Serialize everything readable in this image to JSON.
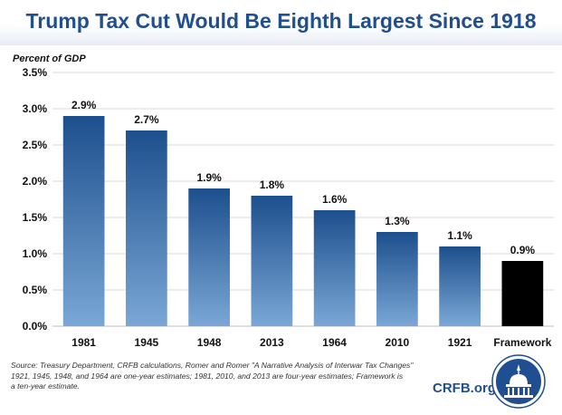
{
  "title": "Trump Tax Cut Would Be Eighth Largest Since 1918",
  "source_lines": [
    "Source: Treasury Department, CRFB calculations, Romer and Romer \"A Narrative Analysis of Interwar Tax Changes\"",
    "1921, 1945, 1948, and 1964 are one-year estimates; 1981, 2010, and 2013 are four-year estimates;  Framework is",
    "a ten-year estimate."
  ],
  "brand": "CRFB.org",
  "logo_icon": "capitol-dome-seal-icon",
  "chart_data": {
    "type": "bar",
    "title": "Trump Tax Cut Would Be Eighth Largest Since 1918",
    "ylabel": "Percent of GDP",
    "xlabel": "",
    "categories": [
      "1981",
      "1945",
      "1948",
      "2013",
      "1964",
      "2010",
      "1921",
      "Framework"
    ],
    "values": [
      2.9,
      2.7,
      1.9,
      1.8,
      1.6,
      1.3,
      1.1,
      0.9
    ],
    "data_labels": [
      "2.9%",
      "2.7%",
      "1.9%",
      "1.8%",
      "1.6%",
      "1.3%",
      "1.1%",
      "0.9%"
    ],
    "ylim": [
      0,
      3.5
    ],
    "yticks": [
      0,
      0.5,
      1.0,
      1.5,
      2.0,
      2.5,
      3.0,
      3.5
    ],
    "ytick_labels": [
      "0.0%",
      "0.5%",
      "1.0%",
      "1.5%",
      "2.0%",
      "2.5%",
      "3.0%",
      "3.5%"
    ],
    "grid": true,
    "colors": {
      "bar_top": "#1d4f8d",
      "bar_bottom": "#7aa7d6",
      "highlight": "#000000",
      "grid": "#d9d9d9"
    },
    "highlight_category": "Framework"
  }
}
